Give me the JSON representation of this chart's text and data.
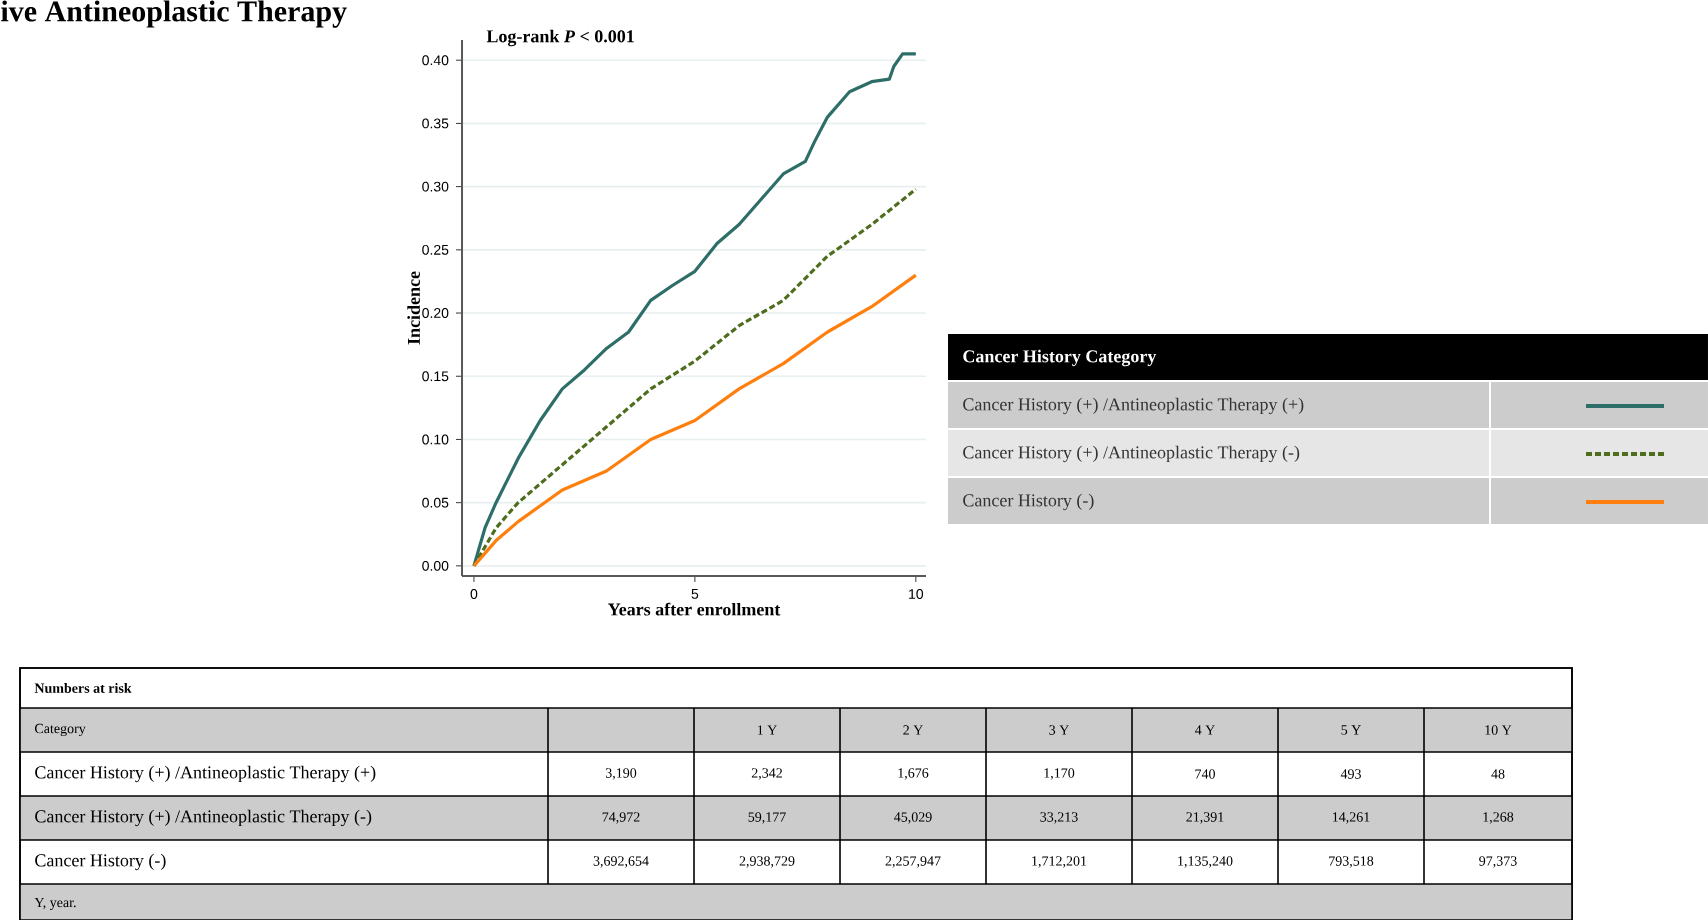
{
  "chart_data": {
    "type": "line",
    "title": "ive Antineoplastic Therapy",
    "xlabel": "Years after enrollment",
    "ylabel": "Incidence",
    "legend_title": "Cancer History Category",
    "xlim": [
      -0.27,
      10.23
    ],
    "ylim": [
      -0.008,
      0.416
    ],
    "xticks": [
      0,
      5,
      10
    ],
    "yticks": [
      {
        "value": 0,
        "label": "0.00"
      },
      {
        "value": 0.05,
        "label": "0.05"
      },
      {
        "value": 0.1,
        "label": "0.10"
      },
      {
        "value": 0.15,
        "label": "0.15"
      },
      {
        "value": 0.2,
        "label": "0.20"
      },
      {
        "value": 0.25,
        "label": "0.25"
      },
      {
        "value": 0.3,
        "label": "0.30"
      },
      {
        "value": 0.35,
        "label": "0.35"
      },
      {
        "value": 0.4,
        "label": "0.40"
      }
    ],
    "grid": "y",
    "legend": "right",
    "marker": "none",
    "line_style": "solid",
    "series": [
      {
        "name": "Cancer History (+) /Antineoplastic Therapy (+)",
        "color": "#2e6e68",
        "x": [
          0,
          0.25,
          0.5,
          1,
          1.5,
          2,
          2.5,
          3,
          3.5,
          4,
          4.5,
          5,
          5.5,
          6,
          6.5,
          7,
          7.5,
          7.7,
          8,
          8.5,
          9,
          9.4,
          9.5,
          9.7,
          10
        ],
        "values": [
          0,
          0.03,
          0.05,
          0.085,
          0.115,
          0.14,
          0.155,
          0.172,
          0.185,
          0.21,
          0.222,
          0.233,
          0.255,
          0.27,
          0.29,
          0.31,
          0.32,
          0.335,
          0.355,
          0.375,
          0.383,
          0.385,
          0.395,
          0.405,
          0.405
        ]
      },
      {
        "name": "Cancer History (+) /Antineoplastic Therapy (-)",
        "color": "#4e6e1e",
        "line_style": "dashed",
        "x": [
          0,
          0.5,
          1,
          2,
          3,
          4,
          5,
          6,
          7,
          8,
          9,
          10
        ],
        "values": [
          0,
          0.03,
          0.05,
          0.08,
          0.11,
          0.14,
          0.162,
          0.19,
          0.21,
          0.245,
          0.27,
          0.298
        ]
      },
      {
        "name": "Cancer History (-)",
        "color": "#ff7f0e",
        "x": [
          0,
          0.5,
          1,
          2,
          3,
          4,
          5,
          6,
          7,
          8,
          9,
          10
        ],
        "values": [
          0,
          0.02,
          0.035,
          0.06,
          0.075,
          0.1,
          0.115,
          0.14,
          0.16,
          0.185,
          0.205,
          0.23
        ]
      }
    ],
    "annotations": [
      "Log-rank *P* < 0.001",
      "Numbers at risk",
      "Category",
      "1 Y",
      "2 Y",
      "3 Y",
      "4 Y",
      "5 Y",
      "10 Y",
      "Cancer History (+) /Antineoplastic Therapy (+)",
      "3,190",
      "2,342",
      "1,676",
      "1,170",
      "740",
      "493",
      "48",
      "Cancer History (+) /Antineoplastic Therapy (-)",
      "74,972",
      "59,177",
      "45,029",
      "33,213",
      "21,391",
      "14,261",
      "1,268",
      "Cancer History (-)",
      "3,692,654",
      "2,938,729",
      "2,257,947",
      "1,712,201",
      "1,135,240",
      "793,518",
      "97,373",
      "Y, year."
    ]
  }
}
